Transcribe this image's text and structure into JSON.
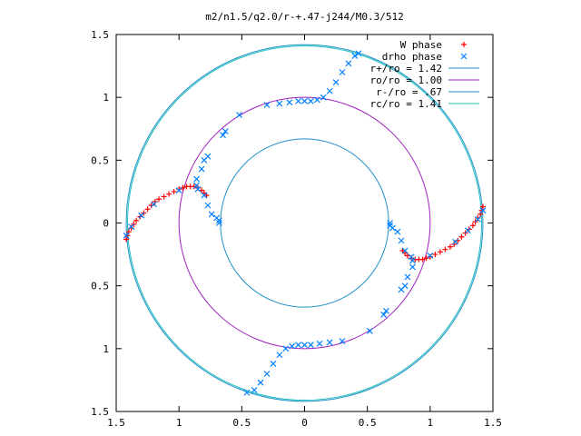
{
  "chart_data": {
    "type": "scatter",
    "title": "m2/n1.5/q2.0/r-+.47-j244/M0.3/512",
    "xlim": [
      -1.5,
      1.5
    ],
    "ylim": [
      -1.5,
      1.5
    ],
    "x_ticks": [
      -1.5,
      -1,
      -0.5,
      0,
      0.5,
      1,
      1.5
    ],
    "y_ticks": [
      -1.5,
      -1,
      -0.5,
      0,
      0.5,
      1,
      1.5
    ],
    "x_tick_labels": [
      "1.5",
      "1",
      "0.5",
      "0",
      "0.5",
      "1",
      "1.5"
    ],
    "y_tick_labels": [
      "1.5",
      "1",
      "0.5",
      "0",
      "0.5",
      "1",
      "1.5"
    ],
    "grid": false,
    "legend_position": "top-right",
    "legend": [
      {
        "label": "W phase",
        "marker": "plus",
        "color": "#ff0000"
      },
      {
        "label": "drho phase",
        "marker": "cross",
        "color": "#0080ff"
      },
      {
        "label": "r+/ro = 1.42",
        "marker": "line",
        "color": "#1e90c8"
      },
      {
        "label": "ro/ro = 1.00",
        "marker": "line",
        "color": "#a020c0"
      },
      {
        "label": "r-/ro = .67",
        "marker": "line",
        "color": "#1e90c8"
      },
      {
        "label": "rc/ro = 1.41",
        "marker": "line",
        "color": "#20c0c0"
      }
    ],
    "circles": [
      {
        "name": "r+/ro",
        "radius": 1.42,
        "color": "#1e90c8"
      },
      {
        "name": "ro/ro",
        "radius": 1.0,
        "color": "#a020c0"
      },
      {
        "name": "r-/ro",
        "radius": 0.67,
        "color": "#1e90c8"
      },
      {
        "name": "rc/ro",
        "radius": 1.41,
        "color": "#20c0c0"
      }
    ],
    "series": [
      {
        "name": "W phase",
        "marker": "plus",
        "color": "#ff0000",
        "points": [
          [
            -1.42,
            -0.13
          ],
          [
            -1.41,
            -0.1
          ],
          [
            -1.4,
            -0.07
          ],
          [
            -1.38,
            -0.04
          ],
          [
            -1.36,
            -0.01
          ],
          [
            -1.34,
            0.02
          ],
          [
            -1.31,
            0.05
          ],
          [
            -1.28,
            0.08
          ],
          [
            -1.25,
            0.11
          ],
          [
            -1.22,
            0.14
          ],
          [
            -1.19,
            0.17
          ],
          [
            -1.16,
            0.19
          ],
          [
            -1.12,
            0.21
          ],
          [
            -1.08,
            0.23
          ],
          [
            -1.04,
            0.25
          ],
          [
            -1.0,
            0.27
          ],
          [
            -0.97,
            0.28
          ],
          [
            -0.94,
            0.29
          ],
          [
            -0.91,
            0.29
          ],
          [
            -0.88,
            0.29
          ],
          [
            -0.85,
            0.28
          ],
          [
            -0.82,
            0.26
          ],
          [
            -0.8,
            0.24
          ],
          [
            -0.78,
            0.22
          ],
          [
            1.42,
            0.13
          ],
          [
            1.41,
            0.1
          ],
          [
            1.4,
            0.07
          ],
          [
            1.38,
            0.04
          ],
          [
            1.36,
            0.01
          ],
          [
            1.34,
            -0.02
          ],
          [
            1.31,
            -0.05
          ],
          [
            1.28,
            -0.08
          ],
          [
            1.25,
            -0.11
          ],
          [
            1.22,
            -0.14
          ],
          [
            1.19,
            -0.17
          ],
          [
            1.16,
            -0.19
          ],
          [
            1.12,
            -0.21
          ],
          [
            1.08,
            -0.23
          ],
          [
            1.04,
            -0.25
          ],
          [
            1.0,
            -0.27
          ],
          [
            0.97,
            -0.28
          ],
          [
            0.94,
            -0.29
          ],
          [
            0.91,
            -0.29
          ],
          [
            0.88,
            -0.29
          ],
          [
            0.85,
            -0.28
          ],
          [
            0.82,
            -0.26
          ],
          [
            0.8,
            -0.24
          ],
          [
            0.78,
            -0.22
          ]
        ]
      },
      {
        "name": "drho phase",
        "marker": "cross",
        "color": "#0080ff",
        "points": [
          [
            -1.42,
            -0.1
          ],
          [
            -1.38,
            -0.03
          ],
          [
            -1.3,
            0.06
          ],
          [
            -1.2,
            0.15
          ],
          [
            -1.0,
            0.26
          ],
          [
            -0.85,
            0.27
          ],
          [
            -0.8,
            0.22
          ],
          [
            -0.77,
            0.14
          ],
          [
            -0.74,
            0.07
          ],
          [
            -0.7,
            0.04
          ],
          [
            -0.68,
            0.02
          ],
          [
            -0.68,
            0.0
          ],
          [
            -0.86,
            0.3
          ],
          [
            -0.86,
            0.35
          ],
          [
            -0.82,
            0.43
          ],
          [
            -0.8,
            0.5
          ],
          [
            -0.77,
            0.53
          ],
          [
            -0.65,
            0.7
          ],
          [
            -0.63,
            0.73
          ],
          [
            -0.52,
            0.86
          ],
          [
            -0.3,
            0.94
          ],
          [
            -0.2,
            0.95
          ],
          [
            -0.12,
            0.96
          ],
          [
            -0.05,
            0.97
          ],
          [
            0.0,
            0.97
          ],
          [
            0.05,
            0.97
          ],
          [
            0.1,
            0.98
          ],
          [
            0.15,
            1.0
          ],
          [
            0.2,
            1.05
          ],
          [
            0.25,
            1.12
          ],
          [
            0.3,
            1.2
          ],
          [
            0.35,
            1.27
          ],
          [
            0.4,
            1.33
          ],
          [
            0.43,
            1.35
          ],
          [
            1.42,
            0.1
          ],
          [
            1.38,
            0.03
          ],
          [
            1.3,
            -0.06
          ],
          [
            1.2,
            -0.15
          ],
          [
            1.0,
            -0.26
          ],
          [
            0.85,
            -0.27
          ],
          [
            0.8,
            -0.22
          ],
          [
            0.77,
            -0.14
          ],
          [
            0.74,
            -0.07
          ],
          [
            0.7,
            -0.04
          ],
          [
            0.68,
            -0.02
          ],
          [
            0.68,
            0.0
          ],
          [
            0.86,
            -0.3
          ],
          [
            0.86,
            -0.35
          ],
          [
            0.82,
            -0.43
          ],
          [
            0.8,
            -0.5
          ],
          [
            0.77,
            -0.53
          ],
          [
            0.65,
            -0.7
          ],
          [
            0.63,
            -0.73
          ],
          [
            0.52,
            -0.86
          ],
          [
            0.3,
            -0.94
          ],
          [
            0.2,
            -0.95
          ],
          [
            0.12,
            -0.96
          ],
          [
            0.05,
            -0.97
          ],
          [
            0.0,
            -0.97
          ],
          [
            -0.05,
            -0.97
          ],
          [
            -0.1,
            -0.98
          ],
          [
            -0.15,
            -1.0
          ],
          [
            -0.2,
            -1.05
          ],
          [
            -0.25,
            -1.12
          ],
          [
            -0.3,
            -1.2
          ],
          [
            -0.35,
            -1.27
          ],
          [
            -0.4,
            -1.33
          ],
          [
            -0.46,
            -1.35
          ]
        ]
      }
    ]
  }
}
